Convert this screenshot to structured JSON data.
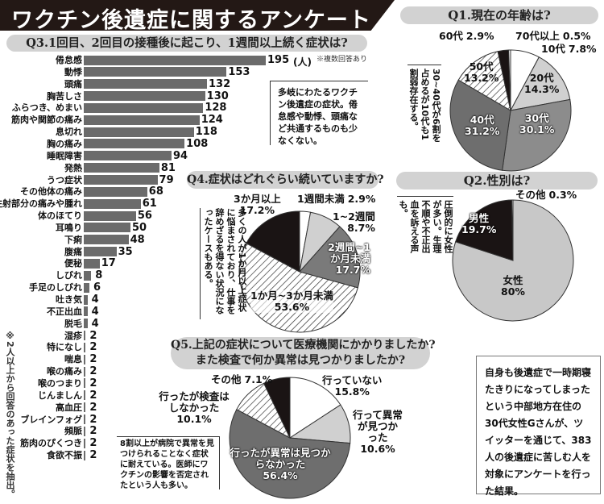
{
  "title": "ワクチン後遺症に関するアンケート",
  "colors": {
    "title_bg": "#231815",
    "pill_bg": "#d2d2d2",
    "bar": "#6b6b6b"
  },
  "q3_note_multiple": "※複数回答あり",
  "q3_note_extract": "※2人以上から回答のあった症状を抽出。",
  "q3_unit": "(人)",
  "q3_callout": "多岐にわたるワクチン後遺症の症状。倦怠感や動悸、頭痛など共通するものも少なくない。",
  "q1_callout": "30~40代が6割を占めるが10代も1割弱存在する。",
  "q2_callout": "圧倒的に女性が多い。生理不順や不正出血を訴える声も。",
  "q4_callout": "多くの人が1か月以上症状に悩まされており、仕事を辞めざるを得ない状況になったケースもある。",
  "q5_callout": "8割以上が病院で異常を見つけられることなく症状に耐えている。医師にワクチンの影響を否定されたという人も多い。",
  "info_box": "自身も後遺症で一時期寝たきりになってしまったという中部地方在住の30代女性Gさんが、ツイッターを通じて、383人の後遺症に苦しむ人を対象にアンケートを行った結果。",
  "chart_data": [
    {
      "type": "bar",
      "title": "Q3.1回目、2回目の接種後に起こり、1週間以上続く症状は?",
      "categories": [
        "倦怠感",
        "動悸",
        "頭痛",
        "胸苦しさ",
        "ふらつき、めまい",
        "筋肉や関節の痛み",
        "息切れ",
        "胸の痛み",
        "睡眠障害",
        "発熱",
        "うつ症状",
        "その他体の痛み",
        "注射部分の痛みや腫れ",
        "体のほてり",
        "耳鳴り",
        "下痢",
        "腹痛",
        "便秘",
        "しびれ",
        "手足のしびれ",
        "吐き気",
        "不正出血",
        "脱毛",
        "湿疹",
        "特になし",
        "喘息",
        "喉の痛み",
        "喉のつまり",
        "じんましん",
        "高血圧",
        "ブレインフォグ",
        "頻脈",
        "筋肉のぴくつき",
        "食欲不振"
      ],
      "values": [
        195,
        153,
        132,
        130,
        128,
        124,
        118,
        108,
        94,
        81,
        79,
        68,
        61,
        56,
        50,
        48,
        35,
        17,
        8,
        6,
        4,
        4,
        4,
        2,
        2,
        2,
        2,
        2,
        2,
        2,
        2,
        2,
        2,
        2
      ],
      "xlabel": "",
      "ylabel": "人",
      "xlim": [
        0,
        195
      ]
    },
    {
      "type": "pie",
      "title": "Q1.現在の年齢は?",
      "slices": [
        {
          "label": "10代",
          "value": 7.8,
          "text": "7.8%",
          "fill": "#ffffff"
        },
        {
          "label": "20代",
          "value": 14.3,
          "text": "14.3%",
          "fill": "#d0d0d0"
        },
        {
          "label": "30代",
          "value": 30.1,
          "text": "30.1%",
          "fill": "#8c8c8c"
        },
        {
          "label": "40代",
          "value": 31.2,
          "text": "31.2%",
          "fill": "#6e6e6e"
        },
        {
          "label": "50代",
          "value": 13.2,
          "text": "13.2%",
          "fill": "hatch"
        },
        {
          "label": "60代",
          "value": 2.9,
          "text": "2.9%",
          "fill": "#1a1414"
        },
        {
          "label": "70代以上",
          "value": 0.5,
          "text": "0.5%",
          "fill": "#ffffff"
        }
      ]
    },
    {
      "type": "pie",
      "title": "Q2.性別は?",
      "slices": [
        {
          "label": "女性",
          "value": 80,
          "text": "80%",
          "fill": "#c8c8c8"
        },
        {
          "label": "男性",
          "value": 19.7,
          "text": "19.7%",
          "fill": "#1a1414"
        },
        {
          "label": "その他",
          "value": 0.3,
          "text": "0.3%",
          "fill": "#ffffff"
        }
      ]
    },
    {
      "type": "pie",
      "title": "Q4.症状はどれぐらい続いていますか?",
      "slices": [
        {
          "label": "1週間未満",
          "value": 2.9,
          "text": "2.9%",
          "fill": "#ffffff"
        },
        {
          "label": "1~2週間",
          "value": 8.7,
          "text": "8.7%",
          "fill": "#d0d0d0"
        },
        {
          "label": "2週間~1か月未満",
          "value": 17.7,
          "text": "17.7%",
          "fill": "#7a7a7a"
        },
        {
          "label": "1か月~3か月未満",
          "value": 53.6,
          "text": "53.6%",
          "fill": "hatch"
        },
        {
          "label": "3か月以上",
          "value": 17.2,
          "text": "17.2%",
          "fill": "#1a1414"
        }
      ]
    },
    {
      "type": "pie",
      "title": "Q5.上記の症状について医療機関にかかりましたか? また検査で何か異常は見つかりましたか?",
      "title_line1": "Q5.上記の症状について医療機関にかかりましたか?",
      "title_line2": "また検査で何か異常は見つかりましたか?",
      "slices": [
        {
          "label": "行っていない",
          "value": 15.8,
          "text": "15.8%",
          "fill": "#ffffff"
        },
        {
          "label": "行って異常が見つかった",
          "value": 10.6,
          "text": "10.6%",
          "fill": "#d0d0d0"
        },
        {
          "label": "行ったが異常は見つからなかった",
          "value": 56.4,
          "text": "56.4%",
          "fill": "#6e6e6e"
        },
        {
          "label": "行ったが検査はしなかった",
          "value": 10.1,
          "text": "10.1%",
          "fill": "hatch"
        },
        {
          "label": "その他",
          "value": 7.1,
          "text": "7.1%",
          "fill": "#1a1414"
        }
      ]
    }
  ]
}
